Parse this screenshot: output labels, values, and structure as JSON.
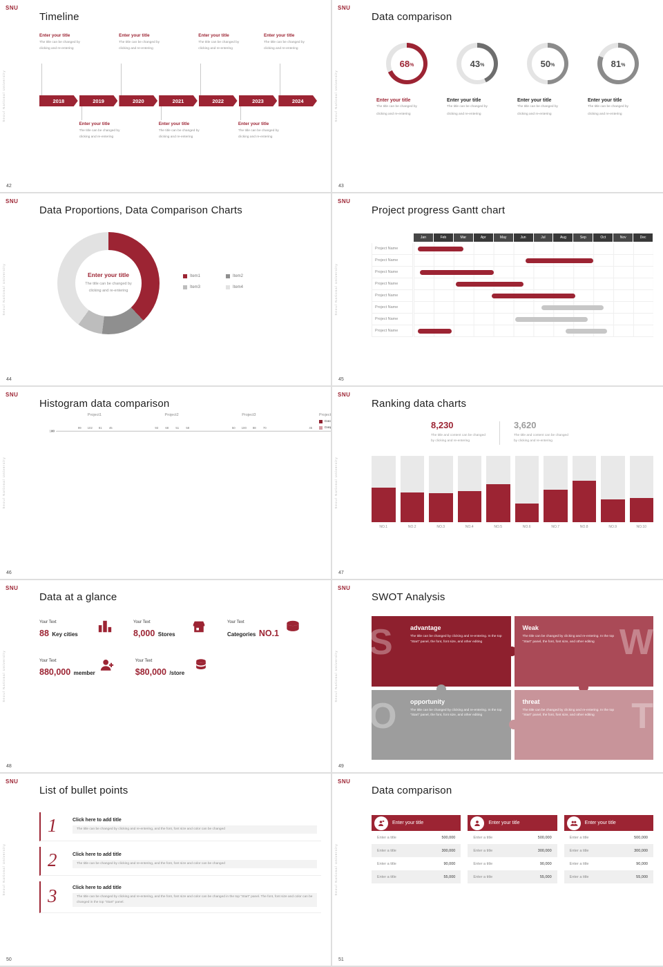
{
  "brand": {
    "logo": "SNU",
    "side_text": "Seoul National University"
  },
  "s42": {
    "number": "42",
    "title": "Timeline",
    "years": [
      "2018",
      "2019",
      "2020",
      "2021",
      "2022",
      "2023",
      "2024"
    ],
    "entry_title": "Enter your title",
    "entry_body": [
      "The title can be changed by",
      "clicking and re-entering"
    ],
    "top_columns": [
      0,
      2,
      4,
      6
    ],
    "bottom_columns": [
      1,
      3,
      5
    ]
  },
  "s43": {
    "number": "43",
    "title": "Data comparison",
    "percent_sign": "%",
    "entry_title": "Enter your title",
    "entry_body": [
      "The title can be changed by",
      "clicking and re-entering"
    ],
    "items": [
      {
        "value": "68",
        "pct": 68,
        "ring": "#9c2433",
        "value_color": "#9c2433",
        "title_color": "#9c2433"
      },
      {
        "value": "43",
        "pct": 43,
        "ring": "#6e6e6e",
        "value_color": "#4a4a4a",
        "title_color": "#242424"
      },
      {
        "value": "50",
        "pct": 50,
        "ring": "#8b8b8b",
        "value_color": "#4a4a4a",
        "title_color": "#242424"
      },
      {
        "value": "81",
        "pct": 81,
        "ring": "#8b8b8b",
        "value_color": "#4a4a4a",
        "title_color": "#242424"
      }
    ]
  },
  "s44": {
    "number": "44",
    "title": "Data Proportions, Data Comparison Charts",
    "center_title": "Enter your title",
    "center_body": [
      "The title can be changed by",
      "clicking and re-entering"
    ],
    "chart": {
      "type": "pie",
      "segments": [
        {
          "label": "Item1",
          "pct": 38,
          "color": "#9c2433"
        },
        {
          "label": "Item2",
          "pct": 14,
          "color": "#8f8f8f"
        },
        {
          "label": "Item3",
          "pct": 8,
          "color": "#bdbdbd"
        },
        {
          "label": "Item4",
          "pct": 40,
          "color": "#e2e2e2"
        }
      ]
    }
  },
  "s45": {
    "number": "45",
    "title": "Project progress Gantt chart",
    "row_label": "Project Name",
    "months": [
      "Jan",
      "Feb",
      "Mar",
      "Apr",
      "May",
      "Jun",
      "Jul",
      "Aug",
      "Sep",
      "Oct",
      "Nov",
      "Dec"
    ],
    "rows": [
      [
        {
          "s": 0.2,
          "l": 2.3,
          "c": "#9c2433"
        }
      ],
      [
        {
          "s": 5.6,
          "l": 3.4,
          "c": "#9c2433"
        }
      ],
      [
        {
          "s": 0.3,
          "l": 3.7,
          "c": "#9c2433"
        }
      ],
      [
        {
          "s": 2.1,
          "l": 3.4,
          "c": "#9c2433"
        }
      ],
      [
        {
          "s": 3.9,
          "l": 4.2,
          "c": "#9c2433"
        }
      ],
      [
        {
          "s": 6.4,
          "l": 3.1,
          "c": "#c7c7c7"
        }
      ],
      [
        {
          "s": 5.1,
          "l": 3.6,
          "c": "#c7c7c7"
        }
      ],
      [
        {
          "s": 0.2,
          "l": 1.7,
          "c": "#9c2433"
        },
        {
          "s": 7.6,
          "l": 2.1,
          "c": "#c7c7c7"
        }
      ]
    ]
  },
  "s46": {
    "number": "46",
    "title": "Histogram data comparison",
    "chart": {
      "type": "bar",
      "categories": [
        "Project1",
        "Project2",
        "Project3",
        "Project4"
      ],
      "yticks": [
        0,
        20,
        40,
        60,
        80,
        100,
        120
      ],
      "ymax": 120,
      "series": [
        {
          "name": "Data1",
          "color": "#8e2230",
          "values": [
            99,
            93,
            50,
            45
          ]
        },
        {
          "name": "Data2",
          "color": "#b2505d",
          "values": [
            102,
            68,
            100,
            86
          ]
        },
        {
          "name": "Data3",
          "color": "#d49ba2",
          "values": [
            81,
            51,
            88,
            78
          ]
        },
        {
          "name": "Data4",
          "color": "#a9a9a9",
          "values": [
            45,
            58,
            70,
            65
          ]
        }
      ]
    }
  },
  "s47": {
    "number": "47",
    "title": "Ranking data charts",
    "stats": [
      {
        "value": "8,230",
        "color": "#9c2433",
        "caption": [
          "The title and content can be changed",
          "by clicking and re-entering"
        ]
      },
      {
        "value": "3,620",
        "color": "#9b9b9b",
        "caption": [
          "The title and content can be changed",
          "by clicking and re-entering"
        ]
      }
    ],
    "chart": {
      "type": "bar",
      "categories": [
        "NO.1",
        "NO.2",
        "NO.3",
        "NO.4",
        "NO.5",
        "NO.6",
        "NO.7",
        "NO.8",
        "NO.9",
        "NO.10"
      ],
      "values": [
        52,
        45,
        44,
        47,
        57,
        28,
        49,
        63,
        34,
        36
      ]
    }
  },
  "s48": {
    "number": "48",
    "title": "Data at a glance",
    "items": [
      {
        "label": "Your Text",
        "big": "88",
        "rest": "Key cities",
        "icon": "city-icon"
      },
      {
        "label": "Your Text",
        "big": "8,000",
        "rest": "Stores",
        "icon": "store-icon"
      },
      {
        "label": "Your Text",
        "pre": "Categories",
        "big": "NO.1",
        "icon": "categories-icon"
      },
      {
        "label": "Your Text",
        "big": "880,000",
        "rest": "member",
        "icon": "member-icon"
      },
      {
        "label": "Your Text",
        "big": "$80,000",
        "rest": "/store",
        "icon": "coins-icon"
      }
    ]
  },
  "s49": {
    "number": "49",
    "title": "SWOT Analysis",
    "body": "The title can be changed by clicking and re-entering. In the top \"Start\" panel, the font, font size, and other editing",
    "quadrants": [
      {
        "letter": "S",
        "label": "advantage",
        "color": "#8e202e",
        "letter_side": "left"
      },
      {
        "letter": "W",
        "label": "Weak",
        "color": "#aa4a57",
        "letter_side": "right"
      },
      {
        "letter": "O",
        "label": "opportunity",
        "color": "#9d9d9d",
        "letter_side": "left"
      },
      {
        "letter": "T",
        "label": "threat",
        "color": "#c8949a",
        "letter_side": "right"
      }
    ]
  },
  "s50": {
    "number": "50",
    "title": "List of bullet points",
    "items": [
      {
        "num": "1",
        "title": "Click here to add title",
        "body": "The title can be changed by clicking and re-entering, and the font, font size and color can be changed"
      },
      {
        "num": "2",
        "title": "Click here to add title",
        "body": "The title can be changed by clicking and re-entering, and the font, font size and color can be changed"
      },
      {
        "num": "3",
        "title": "Click here to add title",
        "body": "The title can be changed by clicking and re-entering, and the font, font size and color can be changed in the top \"Start\" panel. The font, font size and color can be changed in the top \"Start\" panel."
      }
    ]
  },
  "s51": {
    "number": "51",
    "title": "Data comparison",
    "cards": [
      {
        "header": "Enter your title",
        "icon": "person-badge-icon",
        "rows": [
          [
            "Enter a title",
            "500,000"
          ],
          [
            "Enter a title",
            "300,000"
          ],
          [
            "Enter a title",
            "90,000"
          ],
          [
            "Enter a title",
            "55,000"
          ]
        ]
      },
      {
        "header": "Enter your title",
        "icon": "person-icon",
        "rows": [
          [
            "Enter a title",
            "500,000"
          ],
          [
            "Enter a title",
            "300,000"
          ],
          [
            "Enter a title",
            "90,000"
          ],
          [
            "Enter a title",
            "55,000"
          ]
        ]
      },
      {
        "header": "Enter your title",
        "icon": "people-icon",
        "rows": [
          [
            "Enter a title",
            "500,000"
          ],
          [
            "Enter a title",
            "300,000"
          ],
          [
            "Enter a title",
            "90,000"
          ],
          [
            "Enter a title",
            "55,000"
          ]
        ]
      }
    ]
  }
}
